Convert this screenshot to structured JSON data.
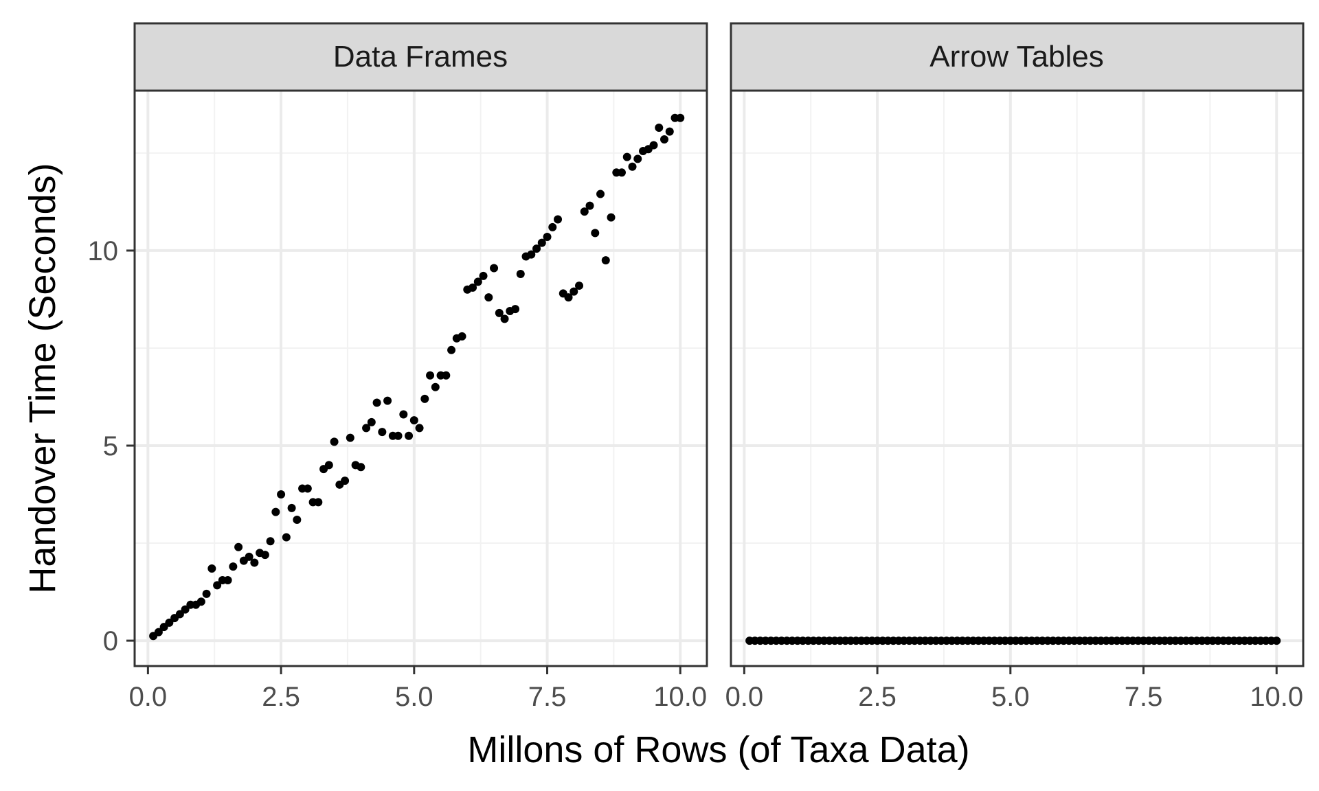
{
  "chart_data": {
    "type": "scatter",
    "title": "",
    "xlabel": "Millons of Rows (of Taxa Data)",
    "ylabel": "Handover Time (Seconds)",
    "xlim": [
      -0.25,
      10.5
    ],
    "ylim": [
      -0.65,
      14.1
    ],
    "x_ticks": [
      "0.0",
      "2.5",
      "5.0",
      "7.5",
      "10.0"
    ],
    "y_ticks": [
      "0",
      "5",
      "10"
    ],
    "grid": true,
    "legend": null,
    "facets": [
      {
        "label": "Data Frames",
        "x": [
          0.1,
          0.2,
          0.3,
          0.4,
          0.5,
          0.6,
          0.7,
          0.8,
          0.9,
          1.0,
          1.1,
          1.2,
          1.3,
          1.4,
          1.5,
          1.6,
          1.7,
          1.8,
          1.9,
          2.0,
          2.1,
          2.2,
          2.3,
          2.4,
          2.5,
          2.6,
          2.7,
          2.8,
          2.9,
          3.0,
          3.1,
          3.2,
          3.3,
          3.4,
          3.5,
          3.6,
          3.7,
          3.8,
          3.9,
          4.0,
          4.1,
          4.2,
          4.3,
          4.4,
          4.5,
          4.6,
          4.7,
          4.8,
          4.9,
          5.0,
          5.1,
          5.2,
          5.3,
          5.4,
          5.5,
          5.6,
          5.7,
          5.8,
          5.9,
          6.0,
          6.1,
          6.2,
          6.3,
          6.4,
          6.5,
          6.6,
          6.7,
          6.8,
          6.9,
          7.0,
          7.1,
          7.2,
          7.3,
          7.4,
          7.5,
          7.6,
          7.7,
          7.8,
          7.9,
          8.0,
          8.1,
          8.2,
          8.3,
          8.4,
          8.5,
          8.6,
          8.7,
          8.8,
          8.9,
          9.0,
          9.1,
          9.2,
          9.3,
          9.4,
          9.5,
          9.6,
          9.7,
          9.8,
          9.9,
          10.0
        ],
        "y": [
          0.12,
          0.22,
          0.35,
          0.46,
          0.58,
          0.68,
          0.8,
          0.92,
          0.92,
          1.0,
          1.2,
          1.85,
          1.42,
          1.55,
          1.55,
          1.9,
          2.4,
          2.05,
          2.15,
          2.0,
          2.25,
          2.2,
          2.55,
          3.3,
          3.75,
          2.65,
          3.4,
          3.1,
          3.9,
          3.9,
          3.55,
          3.55,
          4.4,
          4.5,
          5.1,
          4.0,
          4.1,
          5.2,
          4.5,
          4.45,
          5.45,
          5.6,
          6.1,
          5.35,
          6.15,
          5.25,
          5.25,
          5.8,
          5.25,
          5.65,
          5.45,
          6.2,
          6.8,
          6.5,
          6.8,
          6.8,
          7.45,
          7.75,
          7.8,
          9.0,
          9.05,
          9.2,
          9.35,
          8.8,
          9.55,
          8.4,
          8.25,
          8.45,
          8.5,
          9.4,
          9.85,
          9.9,
          10.05,
          10.2,
          10.35,
          10.6,
          10.8,
          8.9,
          8.8,
          8.95,
          9.1,
          11.0,
          11.15,
          10.45,
          11.45,
          9.75,
          10.85,
          12.0,
          12.0,
          12.4,
          12.15,
          12.35,
          12.55,
          12.6,
          12.7,
          13.15,
          12.85,
          13.05,
          13.4,
          13.4
        ]
      },
      {
        "label": "Arrow Tables",
        "x": [
          0.1,
          0.2,
          0.3,
          0.4,
          0.5,
          0.6,
          0.7,
          0.8,
          0.9,
          1.0,
          1.1,
          1.2,
          1.3,
          1.4,
          1.5,
          1.6,
          1.7,
          1.8,
          1.9,
          2.0,
          2.1,
          2.2,
          2.3,
          2.4,
          2.5,
          2.6,
          2.7,
          2.8,
          2.9,
          3.0,
          3.1,
          3.2,
          3.3,
          3.4,
          3.5,
          3.6,
          3.7,
          3.8,
          3.9,
          4.0,
          4.1,
          4.2,
          4.3,
          4.4,
          4.5,
          4.6,
          4.7,
          4.8,
          4.9,
          5.0,
          5.1,
          5.2,
          5.3,
          5.4,
          5.5,
          5.6,
          5.7,
          5.8,
          5.9,
          6.0,
          6.1,
          6.2,
          6.3,
          6.4,
          6.5,
          6.6,
          6.7,
          6.8,
          6.9,
          7.0,
          7.1,
          7.2,
          7.3,
          7.4,
          7.5,
          7.6,
          7.7,
          7.8,
          7.9,
          8.0,
          8.1,
          8.2,
          8.3,
          8.4,
          8.5,
          8.6,
          8.7,
          8.8,
          8.9,
          9.0,
          9.1,
          9.2,
          9.3,
          9.4,
          9.5,
          9.6,
          9.7,
          9.8,
          9.9,
          10.0
        ],
        "y": [
          0,
          0,
          0,
          0,
          0,
          0,
          0,
          0,
          0,
          0,
          0,
          0,
          0,
          0,
          0,
          0,
          0,
          0,
          0,
          0,
          0,
          0,
          0,
          0,
          0,
          0,
          0,
          0,
          0,
          0,
          0,
          0,
          0,
          0,
          0,
          0,
          0,
          0,
          0,
          0,
          0,
          0,
          0,
          0,
          0,
          0,
          0,
          0,
          0,
          0,
          0,
          0,
          0,
          0,
          0,
          0,
          0,
          0,
          0,
          0,
          0,
          0,
          0,
          0,
          0,
          0,
          0,
          0,
          0,
          0,
          0,
          0,
          0,
          0,
          0,
          0,
          0,
          0,
          0,
          0,
          0,
          0,
          0,
          0,
          0,
          0,
          0,
          0,
          0,
          0,
          0,
          0,
          0,
          0,
          0,
          0,
          0,
          0,
          0,
          0
        ]
      }
    ],
    "colors": {
      "point": "#000000",
      "strip_fill": "#d9d9d9",
      "panel_border": "#333333",
      "grid_major": "#ebebeb",
      "grid_minor": "#f2f2f2",
      "tick_label": "#4d4d4d"
    }
  }
}
